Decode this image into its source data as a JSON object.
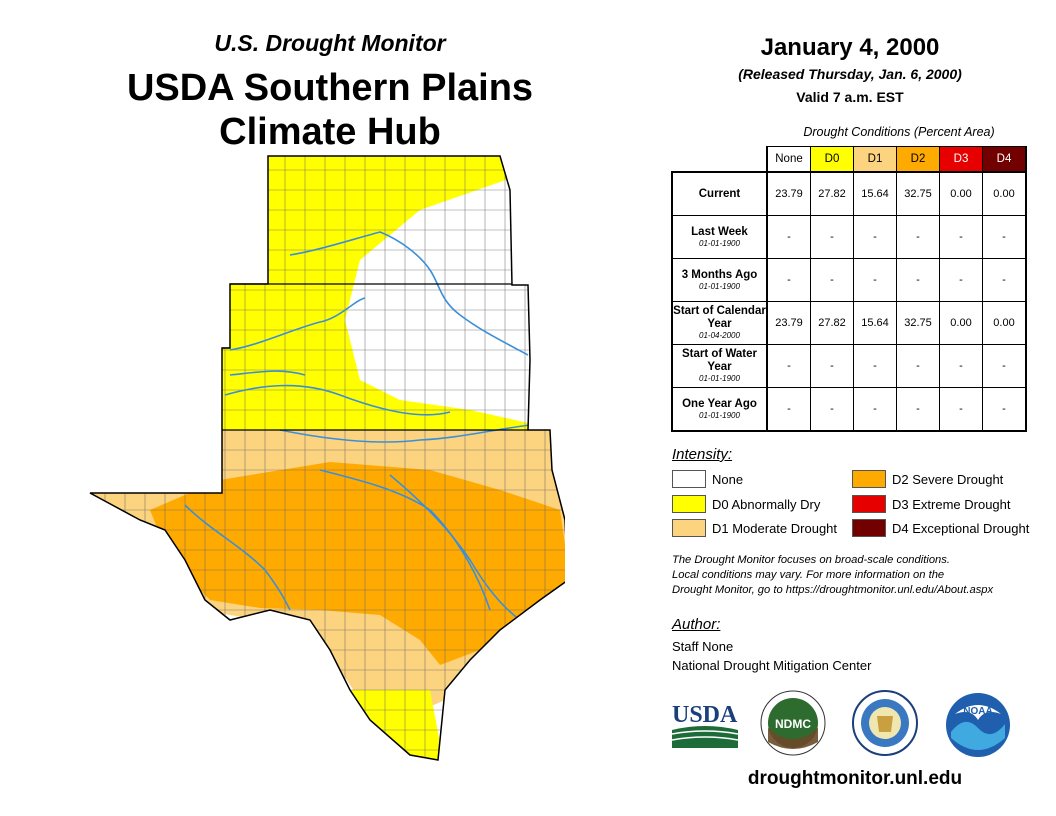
{
  "header": {
    "subtitle": "U.S. Drought Monitor",
    "title_line1": "USDA Southern Plains",
    "title_line2": "Climate Hub"
  },
  "release": {
    "date": "January 4, 2000",
    "released": "(Released Thursday, Jan. 6, 2000)",
    "valid": "Valid 7 a.m. EST"
  },
  "stats": {
    "caption": "Drought Conditions (Percent Area)",
    "columns": [
      "None",
      "D0",
      "D1",
      "D2",
      "D3",
      "D4"
    ],
    "column_colors": [
      "#ffffff",
      "#ffff00",
      "#fcd37f",
      "#ffaa00",
      "#e60000",
      "#730000"
    ],
    "rows": [
      {
        "label": "Current",
        "date": "",
        "values": [
          "23.79",
          "27.82",
          "15.64",
          "32.75",
          "0.00",
          "0.00"
        ]
      },
      {
        "label": "Last Week",
        "date": "01-01-1900",
        "values": [
          "-",
          "-",
          "-",
          "-",
          "-",
          "-"
        ]
      },
      {
        "label": "3 Months Ago",
        "date": "01-01-1900",
        "values": [
          "-",
          "-",
          "-",
          "-",
          "-",
          "-"
        ]
      },
      {
        "label": "Start of Calendar Year",
        "date": "01-04-2000",
        "values": [
          "23.79",
          "27.82",
          "15.64",
          "32.75",
          "0.00",
          "0.00"
        ]
      },
      {
        "label": "Start of Water Year",
        "date": "01-01-1900",
        "values": [
          "-",
          "-",
          "-",
          "-",
          "-",
          "-"
        ]
      },
      {
        "label": "One Year Ago",
        "date": "01-01-1900",
        "values": [
          "-",
          "-",
          "-",
          "-",
          "-",
          "-"
        ]
      }
    ]
  },
  "legend": {
    "title": "Intensity:",
    "items": [
      {
        "label": "None",
        "color": "#ffffff"
      },
      {
        "label": "D0 Abnormally Dry",
        "color": "#ffff00"
      },
      {
        "label": "D1 Moderate Drought",
        "color": "#fcd37f"
      },
      {
        "label": "D2 Severe Drought",
        "color": "#ffaa00"
      },
      {
        "label": "D3 Extreme Drought",
        "color": "#e60000"
      },
      {
        "label": "D4 Exceptional Drought",
        "color": "#730000"
      }
    ]
  },
  "note": {
    "line1": "The Drought Monitor focuses on broad-scale conditions.",
    "line2": "Local conditions may vary. For more information on the",
    "line3": "Drought Monitor, go to https://droughtmonitor.unl.edu/About.aspx"
  },
  "author": {
    "title": "Author:",
    "name": "Staff None",
    "org": "National Drought Mitigation Center"
  },
  "logos": {
    "usda": "USDA",
    "ndmc": "NDMC",
    "noaa": "NOAA"
  },
  "footer_url": "droughtmonitor.unl.edu"
}
